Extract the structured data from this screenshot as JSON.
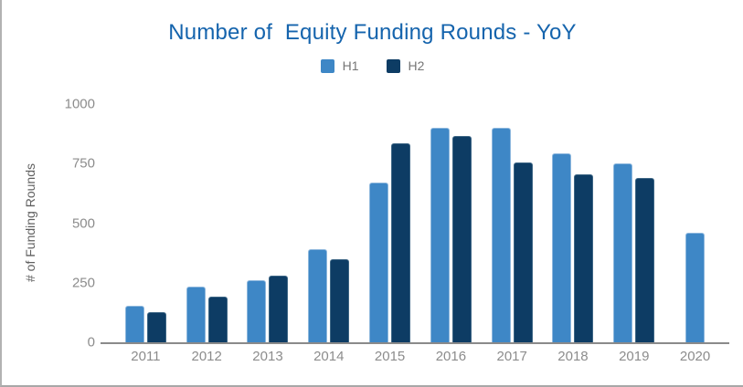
{
  "chart_data": {
    "type": "bar",
    "title": "Number of  Equity Funding Rounds - YoY",
    "xlabel": "",
    "ylabel": "# of Funding Rounds",
    "categories": [
      "2011",
      "2012",
      "2013",
      "2014",
      "2015",
      "2016",
      "2017",
      "2018",
      "2019",
      "2020"
    ],
    "series": [
      {
        "name": "H1",
        "color": "#3e87c6",
        "values": [
          155,
          235,
          260,
          390,
          670,
          900,
          900,
          795,
          750,
          460
        ]
      },
      {
        "name": "H2",
        "color": "#0d3c64",
        "values": [
          125,
          190,
          280,
          350,
          835,
          865,
          755,
          705,
          690,
          null
        ]
      }
    ],
    "ylim": [
      0,
      1000
    ],
    "yticks": [
      0,
      250,
      500,
      750,
      1000
    ],
    "grid": false,
    "legend_position": "top"
  },
  "colors": {
    "title": "#1564ad",
    "axis_line": "#8a8a8a",
    "tick_label": "#8c8c8c",
    "y_axis_title": "#616161",
    "series_h1": "#3e87c6",
    "series_h2": "#0d3c64"
  }
}
